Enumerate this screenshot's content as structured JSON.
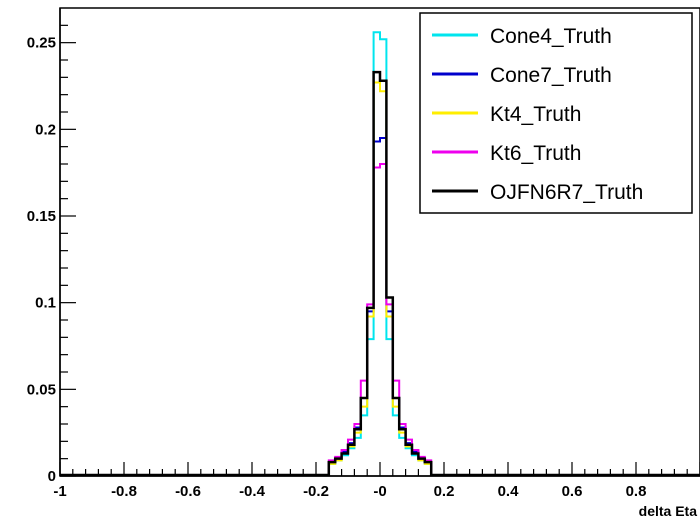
{
  "chart_data": {
    "type": "histogram",
    "xlabel": "delta Eta",
    "ylabel": "",
    "title": "",
    "xlim": [
      -1,
      1
    ],
    "ylim": [
      0,
      0.27
    ],
    "grid": false,
    "legend_position": "top-right",
    "x_ticks": [
      {
        "v": -1,
        "label": "-1"
      },
      {
        "v": -0.8,
        "label": "-0.8"
      },
      {
        "v": -0.6,
        "label": "-0.6"
      },
      {
        "v": -0.4,
        "label": "-0.4"
      },
      {
        "v": -0.2,
        "label": "-0.2"
      },
      {
        "v": 0,
        "label": "-0"
      },
      {
        "v": 0.2,
        "label": "0.2"
      },
      {
        "v": 0.4,
        "label": "0.4"
      },
      {
        "v": 0.6,
        "label": "0.6"
      },
      {
        "v": 0.8,
        "label": "0.8"
      }
    ],
    "y_ticks": [
      {
        "v": 0,
        "label": "0"
      },
      {
        "v": 0.05,
        "label": "0.05"
      },
      {
        "v": 0.1,
        "label": "0.1"
      },
      {
        "v": 0.15,
        "label": "0.15"
      },
      {
        "v": 0.2,
        "label": "0.2"
      },
      {
        "v": 0.25,
        "label": "0.25"
      }
    ],
    "bin_edges": [
      -0.16,
      -0.14,
      -0.12,
      -0.1,
      -0.08,
      -0.06,
      -0.04,
      -0.02,
      0,
      0.02,
      0.04,
      0.06,
      0.08,
      0.1,
      0.12,
      0.14,
      0.16
    ],
    "series": [
      {
        "name": "Cone4_Truth",
        "color": "#00e5ee",
        "values": [
          0.007,
          0.009,
          0.012,
          0.016,
          0.022,
          0.035,
          0.079,
          0.256,
          0.252,
          0.079,
          0.035,
          0.022,
          0.016,
          0.012,
          0.009,
          0.007
        ]
      },
      {
        "name": "Cone7_Truth",
        "color": "#0000cc",
        "values": [
          0.008,
          0.01,
          0.014,
          0.019,
          0.028,
          0.045,
          0.095,
          0.193,
          0.195,
          0.095,
          0.045,
          0.028,
          0.019,
          0.014,
          0.01,
          0.008
        ]
      },
      {
        "name": "Kt4_Truth",
        "color": "#ffee00",
        "values": [
          0.007,
          0.009,
          0.013,
          0.017,
          0.025,
          0.04,
          0.092,
          0.227,
          0.222,
          0.092,
          0.04,
          0.025,
          0.017,
          0.013,
          0.009,
          0.007
        ]
      },
      {
        "name": "Kt6_Truth",
        "color": "#ee00ee",
        "values": [
          0.009,
          0.011,
          0.015,
          0.021,
          0.03,
          0.055,
          0.099,
          0.178,
          0.18,
          0.099,
          0.055,
          0.03,
          0.021,
          0.015,
          0.011,
          0.009
        ]
      },
      {
        "name": "OJFN6R7_Truth",
        "color": "#000000",
        "values": [
          0.008,
          0.01,
          0.013,
          0.018,
          0.027,
          0.045,
          0.097,
          0.233,
          0.228,
          0.103,
          0.045,
          0.027,
          0.018,
          0.013,
          0.01,
          0.008
        ]
      }
    ]
  }
}
